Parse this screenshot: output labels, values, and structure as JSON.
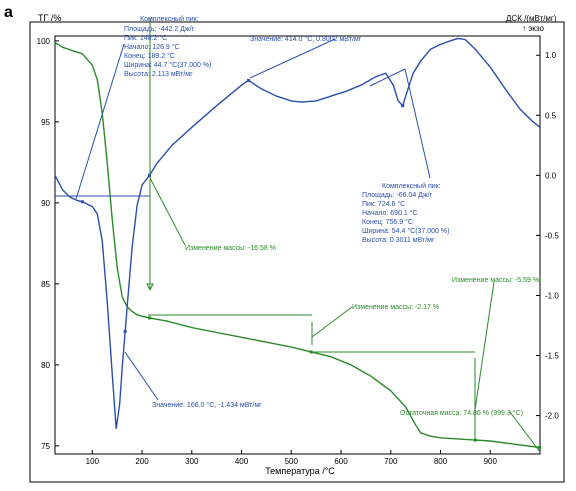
{
  "panel_label": "a",
  "chart_data": {
    "type": "line",
    "xlabel": "Температура /°C",
    "y_left_label": "ТГ /%",
    "y_right_label": "ДСК /(мВт/мг)",
    "y_right_sublabel": "↑ экзо",
    "xlim": [
      25,
      1000
    ],
    "y_left_lim": [
      74.5,
      100.3
    ],
    "y_right_lim": [
      -2.32,
      1.16
    ],
    "x_ticks": [
      100,
      200,
      300,
      400,
      500,
      600,
      700,
      800,
      900
    ],
    "y_left_ticks": [
      75,
      80,
      85,
      90,
      95,
      100
    ],
    "y_right_ticks": [
      1.0,
      0.5,
      0.0,
      -0.5,
      -1.0,
      -1.5,
      -2.0
    ],
    "x_tick_labels": [
      "100",
      "200",
      "300",
      "400",
      "500",
      "600",
      "700",
      "800",
      "900"
    ],
    "y_left_tick_labels": [
      "75",
      "80",
      "85",
      "90",
      "95",
      "100"
    ],
    "y_right_tick_labels": [
      "1.0",
      "0.5",
      "0.0",
      "-0.5",
      "-1.0",
      "-1.5",
      "-2.0"
    ],
    "grid": false,
    "series": [
      {
        "axis": "left",
        "color": "#2a8a2a",
        "x": [
          25,
          40,
          60,
          80,
          100,
          110,
          120,
          130,
          140,
          150,
          160,
          170,
          180,
          190,
          200,
          215,
          250,
          300,
          350,
          400,
          450,
          500,
          540,
          580,
          620,
          660,
          700,
          730,
          750,
          760,
          780,
          800,
          850,
          900,
          950,
          1000
        ],
        "y": [
          99.9,
          99.6,
          99.4,
          99.2,
          98.5,
          97.6,
          95.5,
          92.5,
          89.0,
          86.0,
          84.2,
          83.6,
          83.3,
          83.1,
          83.0,
          82.9,
          82.7,
          82.3,
          82.0,
          81.7,
          81.4,
          81.1,
          80.8,
          80.5,
          80.0,
          79.3,
          78.4,
          77.4,
          76.3,
          75.8,
          75.6,
          75.5,
          75.4,
          75.3,
          75.1,
          74.9
        ]
      },
      {
        "axis": "right",
        "color": "#2a4fae",
        "x": [
          25,
          40,
          55,
          70,
          80,
          100,
          110,
          120,
          130,
          140,
          148,
          155,
          160,
          170,
          180,
          190,
          200,
          215,
          230,
          260,
          300,
          350,
          400,
          414,
          440,
          470,
          500,
          520,
          550,
          580,
          610,
          640,
          670,
          690,
          705,
          715,
          724,
          733,
          745,
          760,
          780,
          800,
          820,
          835,
          850,
          870,
          900,
          930,
          960,
          985,
          1000
        ],
        "y": [
          0.0,
          -0.12,
          -0.18,
          -0.21,
          -0.22,
          -0.26,
          -0.32,
          -0.55,
          -1.05,
          -1.65,
          -2.11,
          -1.9,
          -1.6,
          -1.1,
          -0.6,
          -0.25,
          -0.08,
          0.0,
          0.1,
          0.25,
          0.4,
          0.58,
          0.75,
          0.79,
          0.72,
          0.66,
          0.62,
          0.61,
          0.62,
          0.66,
          0.7,
          0.75,
          0.82,
          0.85,
          0.75,
          0.62,
          0.58,
          0.7,
          0.85,
          0.95,
          1.05,
          1.09,
          1.12,
          1.14,
          1.13,
          1.05,
          0.9,
          0.72,
          0.55,
          0.45,
          0.4
        ]
      }
    ],
    "annotations": {
      "dsc_peak1": [
        "Комплексный пик:",
        "Площадь: -442.2 Дж/г",
        "Пик: 148.2 °C",
        "Начало: 126.9 °C",
        "Конец: 189.2 °C",
        "Ширина: 44.7 °C(37.000 %)",
        "Высота: 2.113 мВт/мг"
      ],
      "dsc_value_top": "Значение: 414.0 °C, 0.8002 мВт/мг",
      "dsc_peak2": [
        "Комплексный пик:",
        "Площадь: -66.04 Дж/г",
        "Пик: 724.6 °C",
        "Начало: 690.1 °C",
        "Конец: 756.9 °C",
        "Ширина: 54.4 °C(37.000 %)",
        "Высота: 0.3011 мВт/мг"
      ],
      "mass_change_1": "Изменение массы: -16.58 %",
      "mass_change_2": "Изменение массы: -2.17 %",
      "mass_change_3": "Изменение массы: -5.59 %",
      "residual_mass": "Остаточная масса: 74.86 % (999.3 °C)",
      "dsc_value_bottom": "Значение: 166.0 °C, -1.434 мВт/мг"
    }
  }
}
